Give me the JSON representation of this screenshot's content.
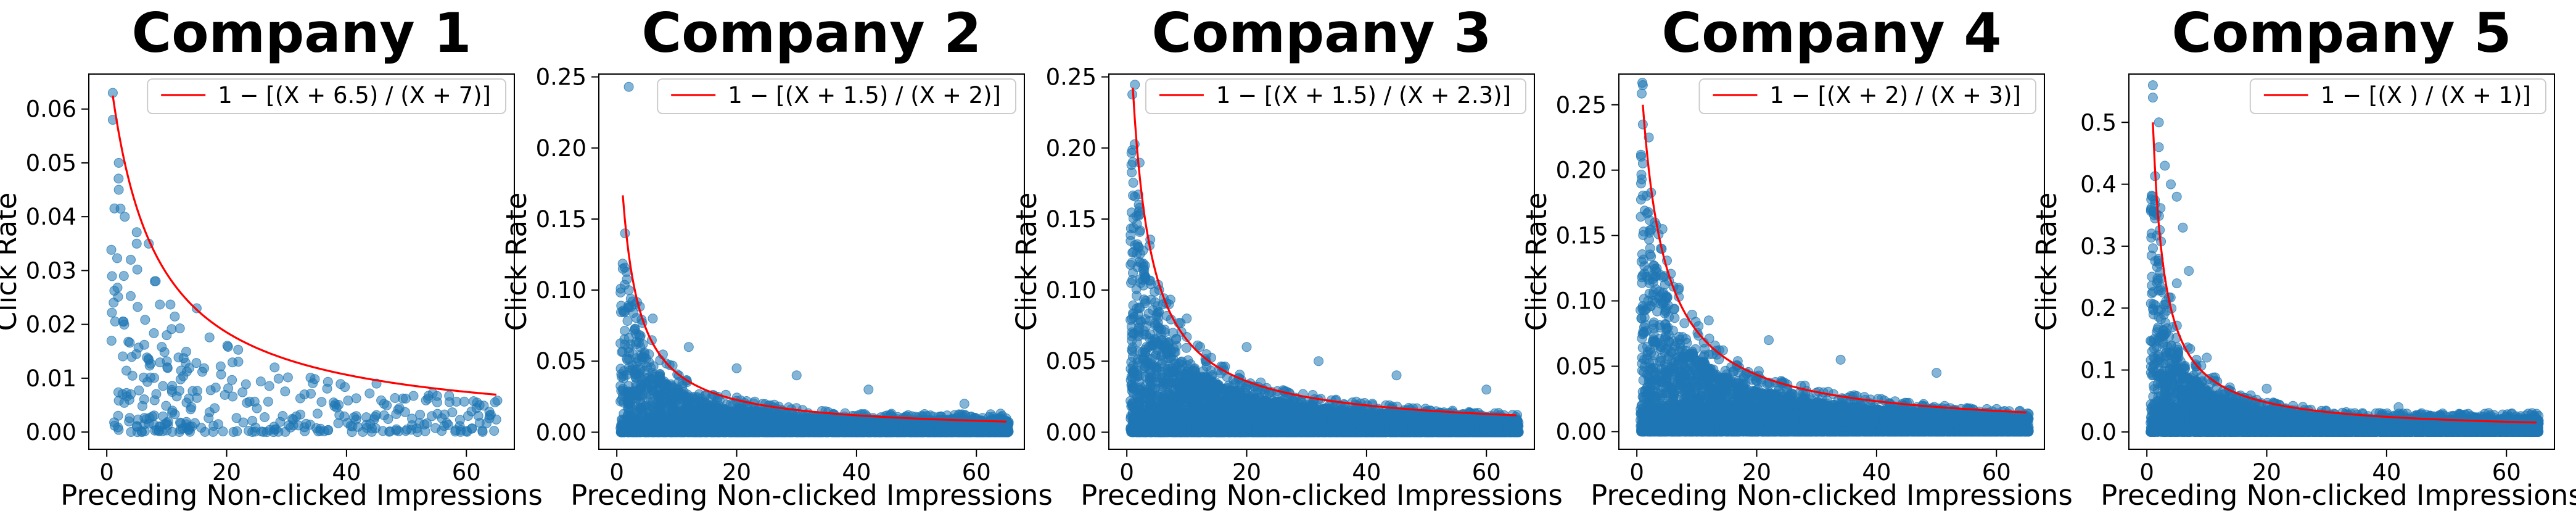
{
  "colors": {
    "scatter": "#1f77b4",
    "fit_line": "#ff0000",
    "axes": "#000000",
    "legend_border": "#cccccc"
  },
  "chart_data": [
    {
      "type": "scatter",
      "title": "Company 1",
      "xlabel": "Preceding Non-clicked Impressions",
      "ylabel": "Click Rate",
      "xlim": [
        -3,
        68
      ],
      "ylim": [
        -0.0032,
        0.0665
      ],
      "xticks": [
        0,
        20,
        40,
        60
      ],
      "xtick_labels": [
        "0",
        "20",
        "40",
        "60"
      ],
      "yticks": [
        0,
        0.01,
        0.02,
        0.03,
        0.04,
        0.05,
        0.06
      ],
      "ytick_labels": [
        "0.00",
        "0.01",
        "0.02",
        "0.03",
        "0.04",
        "0.05",
        "0.06"
      ],
      "grid": false,
      "legend": {
        "position": "top-right",
        "label": "1 − [(X + 6.5) / (X + 7)]"
      },
      "fit": {
        "a": 6.5,
        "b": 7,
        "x_range": [
          1,
          65
        ]
      },
      "scatter": {
        "density": "sparse",
        "x_range": [
          1,
          65
        ],
        "y_top": 0.063,
        "note_points": [
          [
            1,
            0.063
          ],
          [
            1,
            0.058
          ],
          [
            2,
            0.05
          ],
          [
            2,
            0.045
          ],
          [
            3,
            0.04
          ],
          [
            5,
            0.035
          ],
          [
            7,
            0.035
          ],
          [
            8,
            0.028
          ],
          [
            4,
            0.032
          ],
          [
            15,
            0.023
          ],
          [
            10,
            0.018
          ],
          [
            28,
            0.012
          ],
          [
            45,
            0.009
          ],
          [
            62,
            0.003
          ]
        ]
      }
    },
    {
      "type": "scatter",
      "title": "Company 2",
      "xlabel": "Preceding Non-clicked Impressions",
      "ylabel": "Click Rate",
      "xlim": [
        -3,
        68
      ],
      "ylim": [
        -0.012,
        0.252
      ],
      "xticks": [
        0,
        20,
        40,
        60
      ],
      "xtick_labels": [
        "0",
        "20",
        "40",
        "60"
      ],
      "yticks": [
        0,
        0.05,
        0.1,
        0.15,
        0.2,
        0.25
      ],
      "ytick_labels": [
        "0.00",
        "0.05",
        "0.10",
        "0.15",
        "0.20",
        "0.25"
      ],
      "grid": false,
      "legend": {
        "position": "top-right",
        "label": "1 − [(X + 1.5) / (X + 2)]"
      },
      "fit": {
        "a": 1.5,
        "b": 2,
        "x_range": [
          1,
          65
        ]
      },
      "scatter": {
        "density": "dense",
        "x_range": [
          1,
          65
        ],
        "y_top": 0.24,
        "note_points": [
          [
            2,
            0.243
          ],
          [
            1,
            0.115
          ],
          [
            2,
            0.1
          ],
          [
            3,
            0.09
          ],
          [
            6,
            0.08
          ],
          [
            12,
            0.06
          ],
          [
            20,
            0.045
          ],
          [
            30,
            0.04
          ],
          [
            42,
            0.03
          ],
          [
            58,
            0.02
          ]
        ]
      }
    },
    {
      "type": "scatter",
      "title": "Company 3",
      "xlabel": "Preceding Non-clicked Impressions",
      "ylabel": "Click Rate",
      "xlim": [
        -3,
        68
      ],
      "ylim": [
        -0.012,
        0.252
      ],
      "xticks": [
        0,
        20,
        40,
        60
      ],
      "xtick_labels": [
        "0",
        "20",
        "40",
        "60"
      ],
      "yticks": [
        0,
        0.05,
        0.1,
        0.15,
        0.2,
        0.25
      ],
      "ytick_labels": [
        "0.00",
        "0.05",
        "0.10",
        "0.15",
        "0.20",
        "0.25"
      ],
      "grid": false,
      "legend": {
        "position": "top-right",
        "label": "1 − [(X + 1.5) / (X + 2.3)]"
      },
      "fit": {
        "a": 1.5,
        "b": 2.3,
        "x_range": [
          1,
          65
        ]
      },
      "scatter": {
        "density": "very-dense",
        "x_range": [
          1,
          65
        ],
        "y_top": 0.19,
        "note_points": [
          [
            1,
            0.19
          ],
          [
            2,
            0.16
          ],
          [
            2,
            0.13
          ],
          [
            3,
            0.11
          ],
          [
            6,
            0.09
          ],
          [
            10,
            0.08
          ],
          [
            20,
            0.06
          ],
          [
            32,
            0.05
          ],
          [
            45,
            0.04
          ],
          [
            60,
            0.03
          ]
        ]
      }
    },
    {
      "type": "scatter",
      "title": "Company 4",
      "xlabel": "Preceding Non-clicked Impressions",
      "ylabel": "Click Rate",
      "xlim": [
        -3,
        68
      ],
      "ylim": [
        -0.0135,
        0.2735
      ],
      "xticks": [
        0,
        20,
        40,
        60
      ],
      "xtick_labels": [
        "0",
        "20",
        "40",
        "60"
      ],
      "yticks": [
        0,
        0.05,
        0.1,
        0.15,
        0.2,
        0.25
      ],
      "ytick_labels": [
        "0.00",
        "0.05",
        "0.10",
        "0.15",
        "0.20",
        "0.25"
      ],
      "grid": false,
      "legend": {
        "position": "top-right",
        "label": "1 − [(X + 2) / (X + 3)]"
      },
      "fit": {
        "a": 2,
        "b": 3,
        "x_range": [
          1,
          65
        ]
      },
      "scatter": {
        "density": "very-dense",
        "x_range": [
          1,
          65
        ],
        "y_top": 0.265,
        "note_points": [
          [
            1,
            0.265
          ],
          [
            1,
            0.235
          ],
          [
            2,
            0.225
          ],
          [
            3,
            0.16
          ],
          [
            4,
            0.14
          ],
          [
            7,
            0.11
          ],
          [
            12,
            0.085
          ],
          [
            22,
            0.07
          ],
          [
            34,
            0.055
          ],
          [
            50,
            0.045
          ]
        ]
      }
    },
    {
      "type": "scatter",
      "title": "Company 5",
      "xlabel": "Preceding Non-clicked Impressions",
      "ylabel": "Click Rate",
      "xlim": [
        -3,
        68
      ],
      "ylim": [
        -0.028,
        0.578
      ],
      "xticks": [
        0,
        20,
        40,
        60
      ],
      "xtick_labels": [
        "0",
        "20",
        "40",
        "60"
      ],
      "yticks": [
        0,
        0.1,
        0.2,
        0.3,
        0.4,
        0.5
      ],
      "ytick_labels": [
        "0.0",
        "0.1",
        "0.2",
        "0.3",
        "0.4",
        "0.5"
      ],
      "grid": false,
      "legend": {
        "position": "top-right",
        "label": "1 − [(X ) / (X + 1)]"
      },
      "fit": {
        "a": 0,
        "b": 1,
        "x_range": [
          1,
          65
        ]
      },
      "scatter": {
        "density": "very-dense",
        "x_range": [
          1,
          65
        ],
        "y_top": 0.56,
        "note_points": [
          [
            1,
            0.56
          ],
          [
            1,
            0.54
          ],
          [
            2,
            0.5
          ],
          [
            2,
            0.46
          ],
          [
            3,
            0.43
          ],
          [
            4,
            0.4
          ],
          [
            5,
            0.38
          ],
          [
            6,
            0.33
          ],
          [
            7,
            0.26
          ],
          [
            5,
            0.24
          ],
          [
            10,
            0.12
          ],
          [
            20,
            0.07
          ],
          [
            42,
            0.04
          ],
          [
            60,
            0.025
          ]
        ]
      }
    }
  ]
}
